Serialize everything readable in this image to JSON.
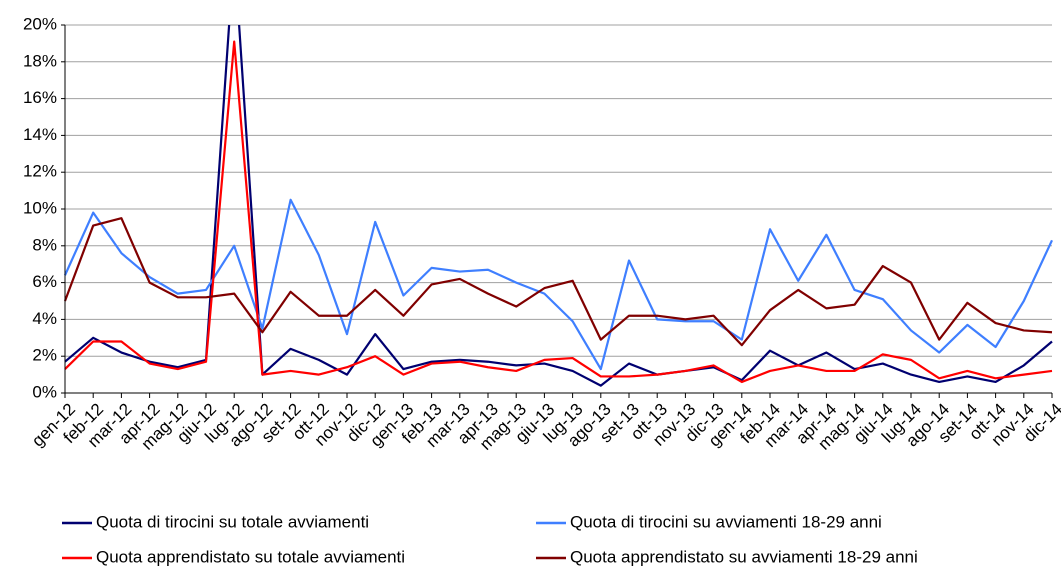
{
  "chart_data": {
    "type": "line",
    "categories": [
      "gen-12",
      "feb-12",
      "mar-12",
      "apr-12",
      "mag-12",
      "giu-12",
      "lug-12",
      "ago-12",
      "set-12",
      "ott-12",
      "nov-12",
      "dic-12",
      "gen-13",
      "feb-13",
      "mar-13",
      "apr-13",
      "mag-13",
      "giu-13",
      "lug-13",
      "ago-13",
      "set-13",
      "ott-13",
      "nov-13",
      "dic-13",
      "gen-14",
      "feb-14",
      "mar-14",
      "apr-14",
      "mag-14",
      "giu-14",
      "lug-14",
      "ago-14",
      "set-14",
      "ott-14",
      "nov-14",
      "dic-14"
    ],
    "series": [
      {
        "name": "Quota di tirocini su totale avviamenti",
        "color": "#000070",
        "values": [
          1.7,
          3.0,
          2.2,
          1.7,
          1.4,
          1.8,
          24,
          1.0,
          2.4,
          1.8,
          1.0,
          3.2,
          1.3,
          1.7,
          1.8,
          1.7,
          1.5,
          1.6,
          1.2,
          0.4,
          1.6,
          1.0,
          1.2,
          1.4,
          0.7,
          2.3,
          1.5,
          2.2,
          1.3,
          1.6,
          1.0,
          0.6,
          0.9,
          0.6,
          1.5,
          2.8
        ]
      },
      {
        "name": "Quota di tirocini su avviamenti 18-29 anni",
        "color": "#3f7fff",
        "values": [
          6.4,
          9.8,
          7.6,
          6.3,
          5.4,
          5.6,
          8.0,
          3.5,
          10.5,
          7.5,
          3.2,
          9.3,
          5.3,
          6.8,
          6.6,
          6.7,
          6.0,
          5.4,
          3.9,
          1.3,
          7.2,
          4.0,
          3.9,
          3.9,
          2.9,
          8.9,
          6.1,
          8.6,
          5.6,
          5.1,
          3.4,
          2.2,
          3.7,
          2.5,
          5.0,
          8.3
        ]
      },
      {
        "name": "Quota apprendistato su totale avviamenti",
        "color": "#ff0000",
        "values": [
          1.3,
          2.8,
          2.8,
          1.6,
          1.3,
          1.7,
          19.1,
          1.0,
          1.2,
          1.0,
          1.4,
          2.0,
          1.0,
          1.6,
          1.7,
          1.4,
          1.2,
          1.8,
          1.9,
          0.9,
          0.9,
          1.0,
          1.2,
          1.5,
          0.6,
          1.2,
          1.5,
          1.2,
          1.2,
          2.1,
          1.8,
          0.8,
          1.2,
          0.8,
          1.0,
          1.2
        ]
      },
      {
        "name": "Quota apprendistato su avviamenti 18-29 anni",
        "color": "#800000",
        "values": [
          5.0,
          9.1,
          9.5,
          6.0,
          5.2,
          5.2,
          5.4,
          3.3,
          5.5,
          4.2,
          4.2,
          5.6,
          4.2,
          5.9,
          6.2,
          5.4,
          4.7,
          5.7,
          6.1,
          2.9,
          4.2,
          4.2,
          4.0,
          4.2,
          2.6,
          4.5,
          5.6,
          4.6,
          4.8,
          6.9,
          6.0,
          2.9,
          4.9,
          3.8,
          3.4,
          3.3
        ]
      }
    ],
    "ylim": [
      0,
      20
    ],
    "yticks": [
      {
        "value": 0,
        "label": "0%"
      },
      {
        "value": 2,
        "label": "2%"
      },
      {
        "value": 4,
        "label": "4%"
      },
      {
        "value": 6,
        "label": "6%"
      },
      {
        "value": 8,
        "label": "8%"
      },
      {
        "value": 10,
        "label": "10%"
      },
      {
        "value": 12,
        "label": "12%"
      },
      {
        "value": 14,
        "label": "14%"
      },
      {
        "value": 16,
        "label": "16%"
      },
      {
        "value": 18,
        "label": "18%"
      },
      {
        "value": 20,
        "label": "20%"
      }
    ],
    "grid": true
  }
}
